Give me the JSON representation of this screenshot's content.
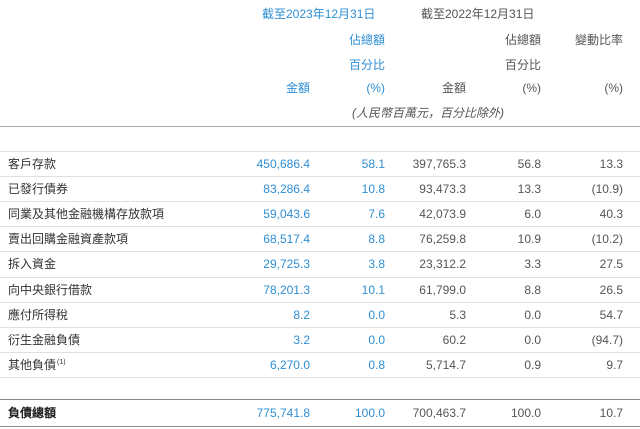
{
  "header": {
    "period_2023": "截至2023年12月31日",
    "period_2022": "截至2022年12月31日",
    "share_label_line1_2023": "佔總額",
    "share_label_line2_2023": "百分比",
    "amount_label_2023": "金額",
    "share_unit_2023": "(%)",
    "share_label_line1_2022": "佔總額",
    "share_label_line2_2022": "百分比",
    "amount_label_2022": "金額",
    "share_unit_2022": "(%)",
    "change_label": "變動比率",
    "change_unit": "(%)",
    "unit_note": "(人民幣百萬元，百分比除外)"
  },
  "rows": [
    {
      "label": "客戶存款",
      "amount_2023": "450,686.4",
      "share_2023": "58.1",
      "amount_2022": "397,765.3",
      "share_2022": "56.8",
      "change": "13.3"
    },
    {
      "label": "已發行債券",
      "amount_2023": "83,286.4",
      "share_2023": "10.8",
      "amount_2022": "93,473.3",
      "share_2022": "13.3",
      "change": "(10.9)"
    },
    {
      "label": "同業及其他金融機構存放款項",
      "amount_2023": "59,043.6",
      "share_2023": "7.6",
      "amount_2022": "42,073.9",
      "share_2022": "6.0",
      "change": "40.3"
    },
    {
      "label": "賣出回購金融資產款項",
      "amount_2023": "68,517.4",
      "share_2023": "8.8",
      "amount_2022": "76,259.8",
      "share_2022": "10.9",
      "change": "(10.2)"
    },
    {
      "label": "拆入資金",
      "amount_2023": "29,725.3",
      "share_2023": "3.8",
      "amount_2022": "23,312.2",
      "share_2022": "3.3",
      "change": "27.5"
    },
    {
      "label": "向中央銀行借款",
      "amount_2023": "78,201.3",
      "share_2023": "10.1",
      "amount_2022": "61,799.0",
      "share_2022": "8.8",
      "change": "26.5"
    },
    {
      "label": "應付所得稅",
      "amount_2023": "8.2",
      "share_2023": "0.0",
      "amount_2022": "5.3",
      "share_2022": "0.0",
      "change": "54.7"
    },
    {
      "label": "衍生金融負債",
      "amount_2023": "3.2",
      "share_2023": "0.0",
      "amount_2022": "60.2",
      "share_2022": "0.0",
      "change": "(94.7)"
    },
    {
      "label": "其他負債",
      "note": "(1)",
      "amount_2023": "6,270.0",
      "share_2023": "0.8",
      "amount_2022": "5,714.7",
      "share_2022": "0.9",
      "change": "9.7"
    }
  ],
  "total": {
    "label": "負債總額",
    "amount_2023": "775,741.8",
    "share_2023": "100.0",
    "amount_2022": "700,463.7",
    "share_2022": "100.0",
    "change": "10.7"
  },
  "colors": {
    "accent_2023": "#2e8fd4",
    "text": "#3a3a3a",
    "muted": "#555555"
  }
}
